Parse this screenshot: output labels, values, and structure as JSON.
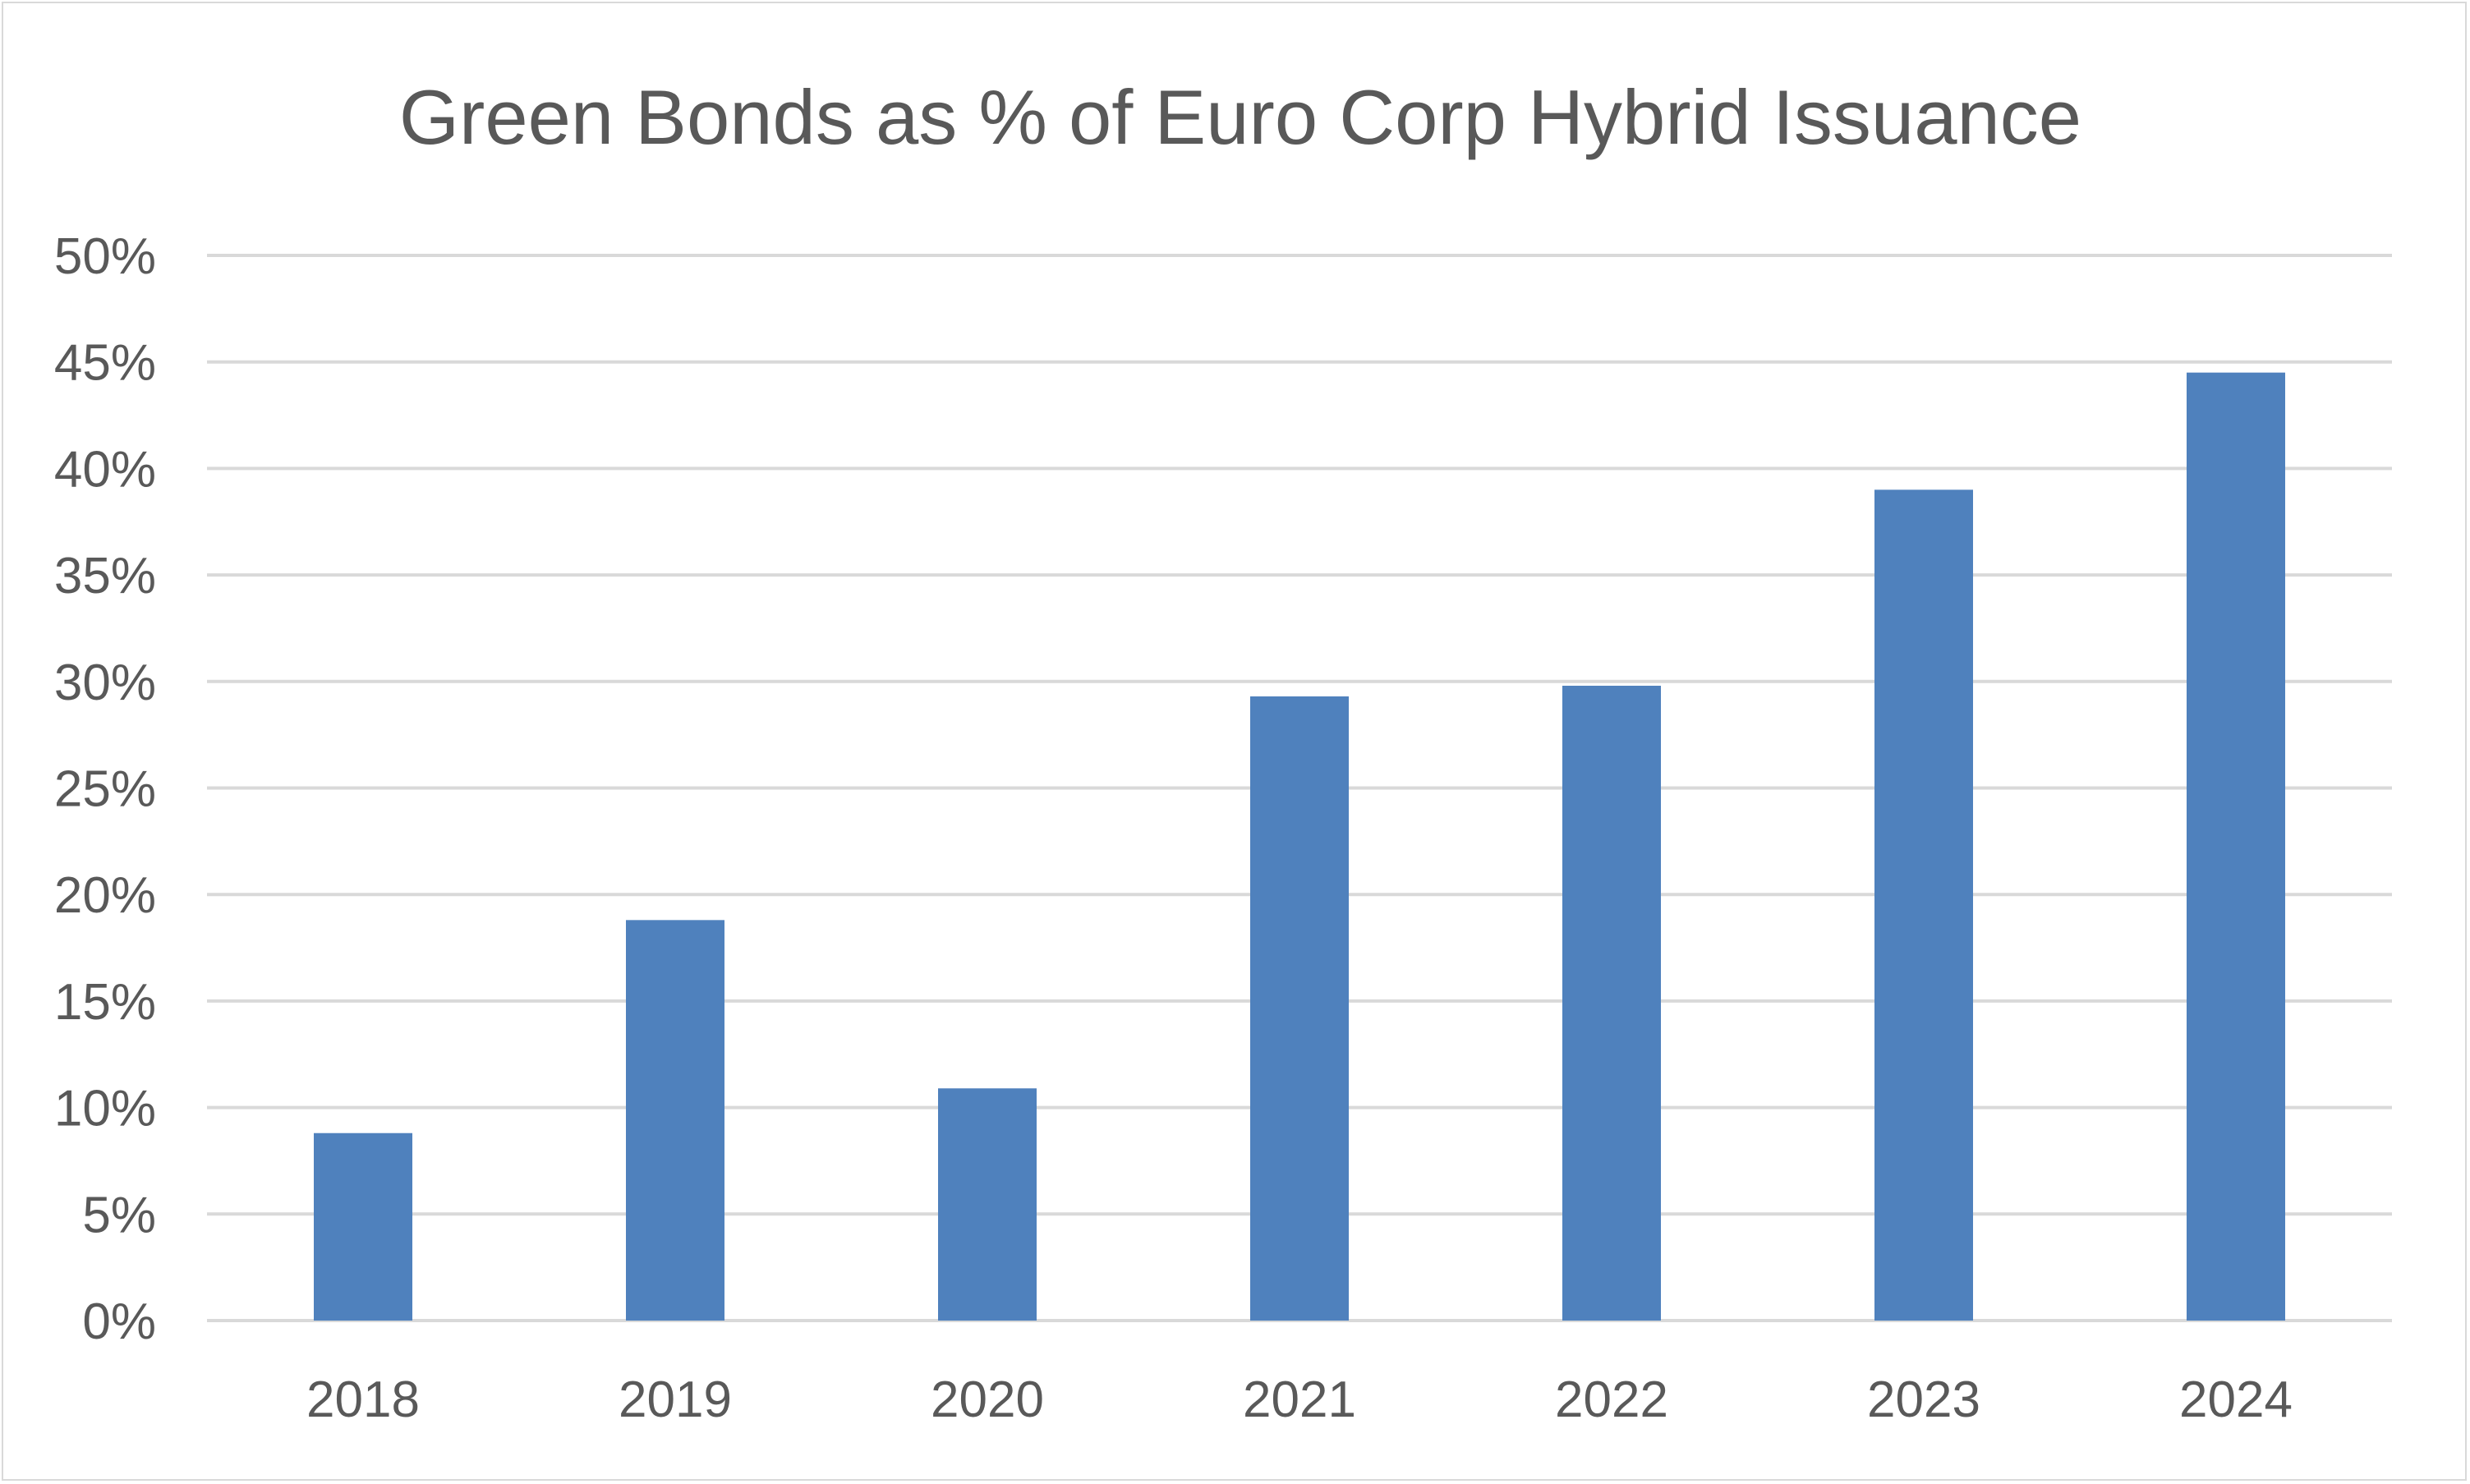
{
  "chart_data": {
    "type": "bar",
    "title": "Green Bonds as % of Euro Corp Hybrid Issuance",
    "categories": [
      "2018",
      "2019",
      "2020",
      "2021",
      "2022",
      "2023",
      "2024"
    ],
    "values": [
      8.8,
      18.8,
      10.9,
      29.3,
      29.8,
      39.0,
      44.5
    ],
    "unit": "%",
    "ylim": [
      0,
      50
    ],
    "y_ticks": [
      0,
      5,
      10,
      15,
      20,
      25,
      30,
      35,
      40,
      45,
      50
    ],
    "y_tick_labels": [
      "0%",
      "5%",
      "10%",
      "15%",
      "20%",
      "25%",
      "30%",
      "35%",
      "40%",
      "45%",
      "50%"
    ],
    "xlabel": "",
    "ylabel": "",
    "grid": true,
    "legend": "none",
    "bar_color": "#4f81bd",
    "grid_color": "#d9d9d9",
    "text_color": "#595959"
  }
}
